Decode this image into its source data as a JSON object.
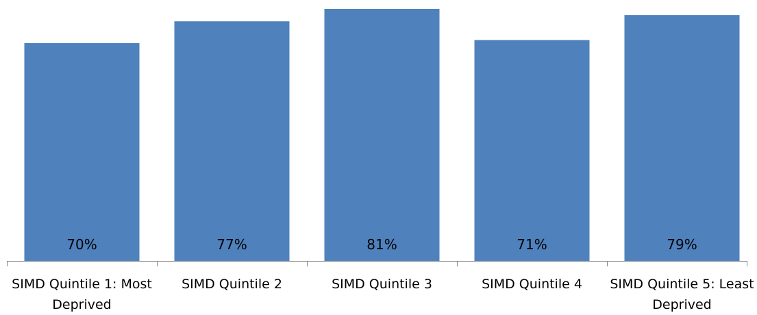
{
  "chart_data": {
    "type": "bar",
    "categories": [
      "SIMD Quintile 1: Most Deprived",
      "SIMD Quintile 2",
      "SIMD Quintile 3",
      "SIMD Quintile 4",
      "SIMD Quintile 5: Least Deprived"
    ],
    "values": [
      70,
      77,
      81,
      71,
      79
    ],
    "value_labels": [
      "70%",
      "77%",
      "81%",
      "71%",
      "79%"
    ],
    "color": "#4f81bd"
  }
}
